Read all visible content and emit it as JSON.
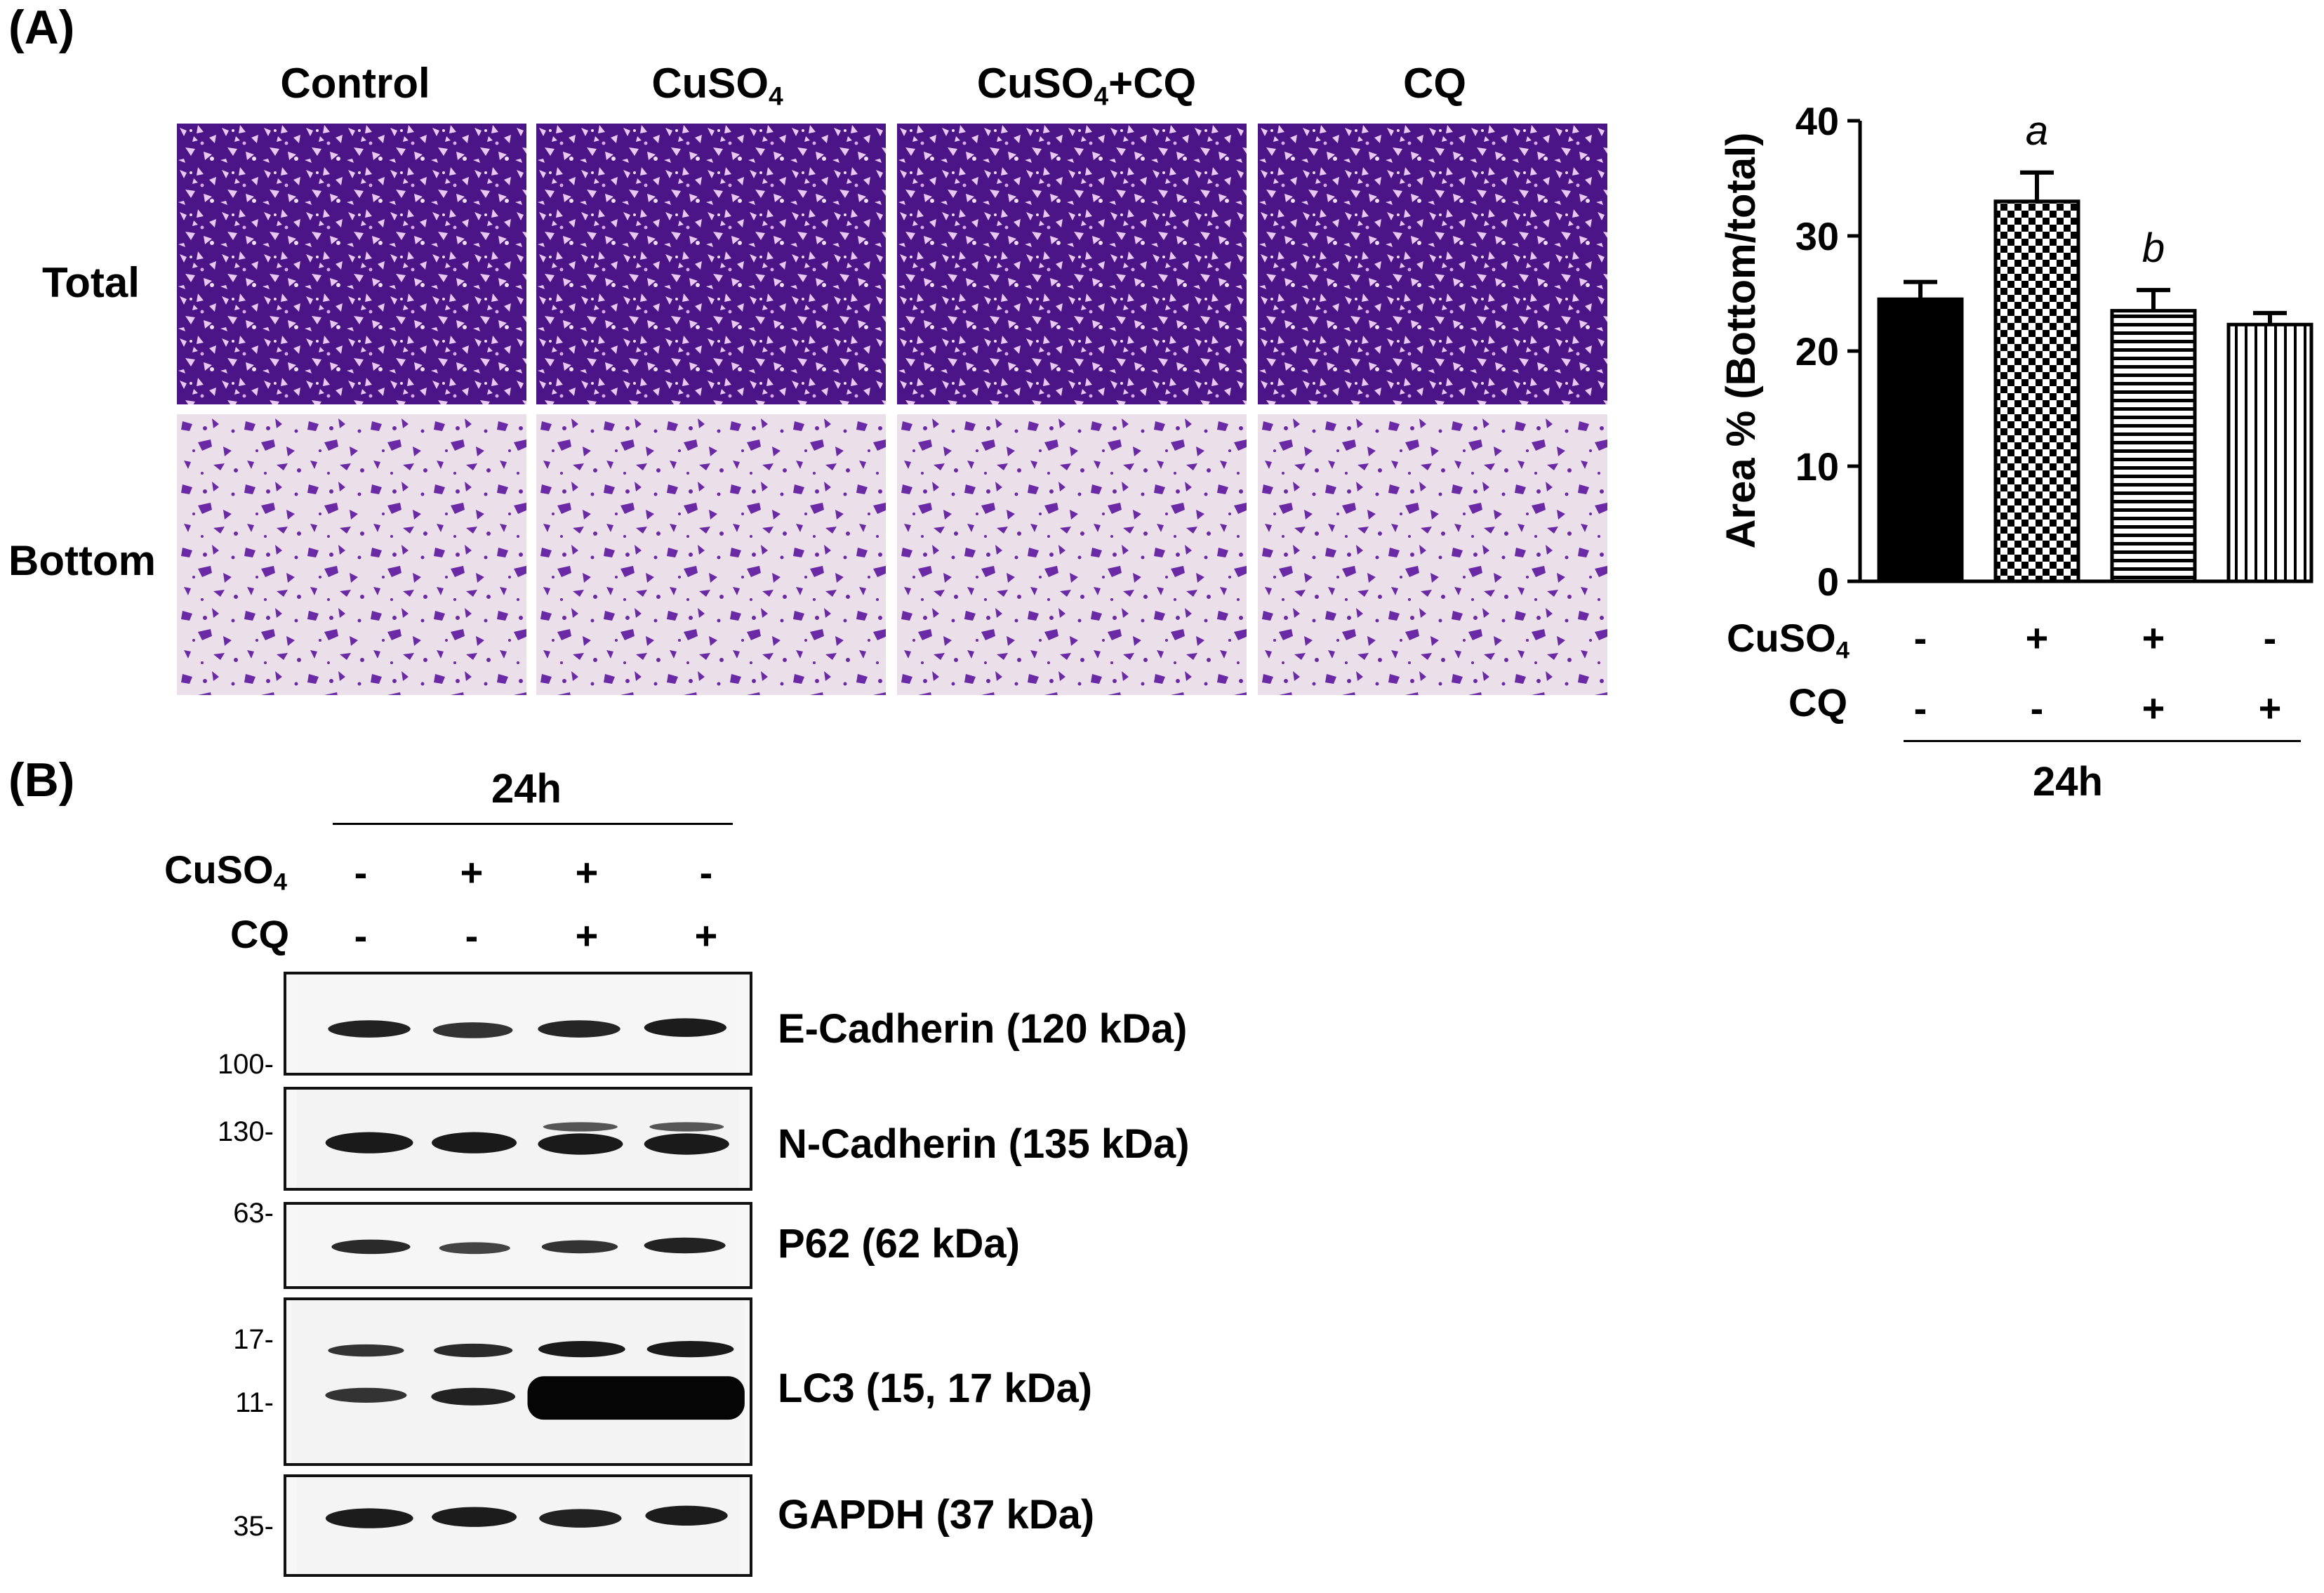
{
  "panels": {
    "a": "(A)",
    "b": "(B)"
  },
  "micrographs": {
    "columns": [
      "Control",
      "CuSO",
      "CuSO",
      "CQ"
    ],
    "column_subscripts": [
      "",
      "4",
      "4",
      ""
    ],
    "column_suffixes": [
      "",
      "",
      "+CQ",
      ""
    ],
    "rows": [
      "Total",
      "Bottom"
    ]
  },
  "chart_data": {
    "type": "bar",
    "categories": [
      "Control",
      "CuSO4",
      "CuSO4+CQ",
      "CQ"
    ],
    "values": [
      24.5,
      33,
      23.5,
      22.3
    ],
    "errors": [
      1.5,
      2.5,
      1.8,
      1.0
    ],
    "annotations": [
      "",
      "a",
      "b",
      ""
    ],
    "ylabel": "Area % (Bottom/total)",
    "ylim": [
      0,
      40
    ],
    "yticks": [
      0,
      10,
      20,
      30,
      40
    ],
    "fill_patterns": [
      "solid-black",
      "checkerboard",
      "horizontal-stripes",
      "vertical-stripes"
    ],
    "treatment_rows": [
      {
        "label": "CuSO",
        "subscript": "4",
        "signs": [
          "-",
          "+",
          "+",
          "-"
        ]
      },
      {
        "label": "CQ",
        "subscript": "",
        "signs": [
          "-",
          "-",
          "+",
          "+"
        ]
      }
    ],
    "time_label": "24h"
  },
  "western": {
    "time_label": "24h",
    "treatment_rows": [
      {
        "label": "CuSO",
        "subscript": "4",
        "signs": [
          "-",
          "+",
          "+",
          "-"
        ]
      },
      {
        "label": "CQ",
        "subscript": "",
        "signs": [
          "-",
          "-",
          "+",
          "+"
        ]
      }
    ],
    "blots": [
      {
        "label": "E-Cadherin (120 kDa)",
        "markers": [
          "100-"
        ]
      },
      {
        "label": "N-Cadherin (135 kDa)",
        "markers": [
          "130-"
        ]
      },
      {
        "label": "P62 (62 kDa)",
        "markers": [
          "63-"
        ]
      },
      {
        "label": "LC3 (15, 17 kDa)",
        "markers": [
          "17-",
          "11-"
        ]
      },
      {
        "label": "GAPDH (37 kDa)",
        "markers": [
          "35-"
        ]
      }
    ]
  },
  "colors": {
    "stain_dense": "#5a1e9a",
    "stain_background": "#e9ddea",
    "bar": "#000000"
  }
}
